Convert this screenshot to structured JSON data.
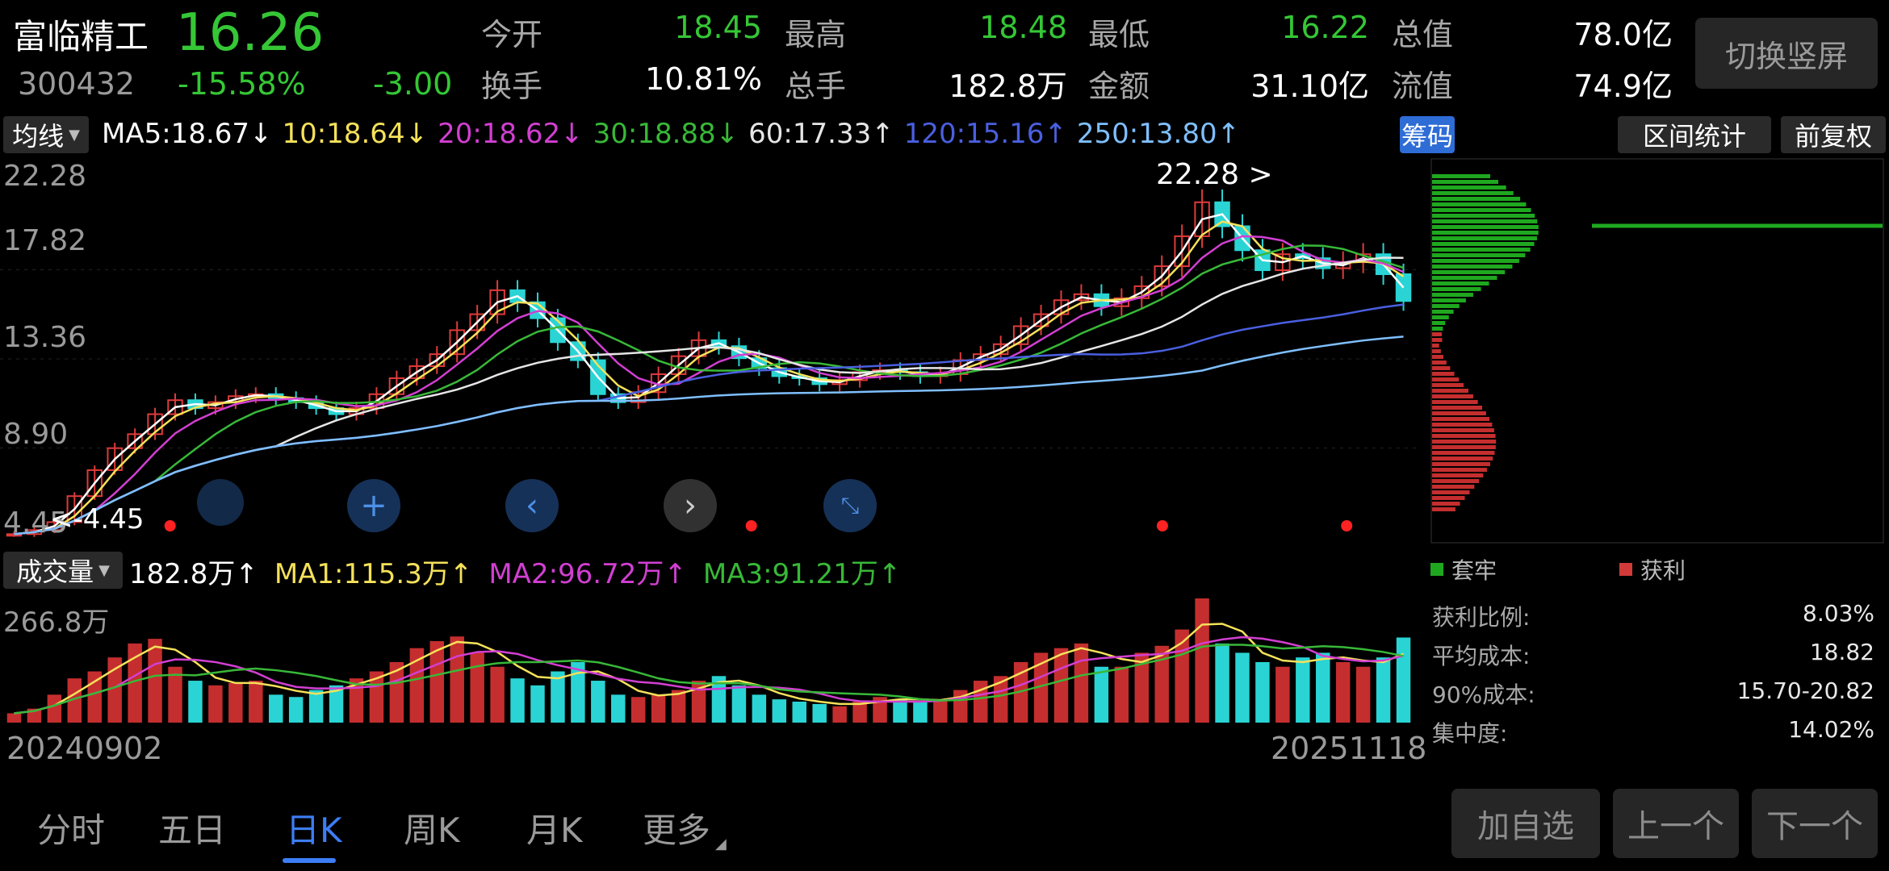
{
  "stock": {
    "name": "富临精工",
    "price": "16.26",
    "code": "300432",
    "change_pct": "-15.58%",
    "change_abs": "-3.00"
  },
  "stats": [
    {
      "label": "今开",
      "value": "18.45",
      "color": "#35c735"
    },
    {
      "label": "最高",
      "value": "18.48",
      "color": "#35c735"
    },
    {
      "label": "最低",
      "value": "16.22",
      "color": "#35c735"
    },
    {
      "label": "总值",
      "value": "78.0亿",
      "color": "#ffffff"
    },
    {
      "label": "换手",
      "value": "10.81%",
      "color": "#ffffff"
    },
    {
      "label": "总手",
      "value": "182.8万",
      "color": "#ffffff"
    },
    {
      "label": "金额",
      "value": "31.10亿",
      "color": "#ffffff"
    },
    {
      "label": "流值",
      "value": "74.9亿",
      "color": "#ffffff"
    }
  ],
  "switch_button": "切换竖屏",
  "ma_row": {
    "selector": "均线",
    "items": [
      {
        "text": "MA5:18.67↓",
        "color": "#ffffff"
      },
      {
        "text": "10:18.64↓",
        "color": "#f5e15a"
      },
      {
        "text": "20:18.62↓",
        "color": "#d23fd2"
      },
      {
        "text": "30:18.88↓",
        "color": "#38b838"
      },
      {
        "text": "60:17.33↑",
        "color": "#e6e6e6"
      },
      {
        "text": "120:15.16↑",
        "color": "#4a5fe0"
      },
      {
        "text": "250:13.80↑",
        "color": "#7fbfff"
      }
    ],
    "chip_button": "筹码",
    "range_button": "区间统计",
    "adjust_button": "前复权"
  },
  "price_axis": [
    "22.28",
    "17.82",
    "13.36",
    "8.90",
    "4.45"
  ],
  "price_ylim": [
    4.45,
    22.28
  ],
  "annotations": {
    "high": "22.28",
    "low": "4.45"
  },
  "volume_row": {
    "selector": "成交量",
    "items": [
      {
        "text": "182.8万↑",
        "color": "#ffffff"
      },
      {
        "text": "MA1:115.3万↑",
        "color": "#f5e15a"
      },
      {
        "text": "MA2:96.72万↑",
        "color": "#d23fd2"
      },
      {
        "text": "MA3:91.21万↑",
        "color": "#38b838"
      }
    ]
  },
  "volume_axis": {
    "max": "266.8万",
    "max_value": 266.8
  },
  "date_range": {
    "start": "20240902",
    "end": "20251118"
  },
  "chips": {
    "legend": [
      {
        "label": "套牢",
        "color": "#1fa81f"
      },
      {
        "label": "获利",
        "color": "#d23a3a"
      }
    ],
    "stats": [
      {
        "label": "获利比例:",
        "value": "8.03%"
      },
      {
        "label": "平均成本:",
        "value": "18.82"
      },
      {
        "label": "90%成本:",
        "value": "15.70-20.82"
      },
      {
        "label": "集中度:",
        "value": "14.02%"
      }
    ]
  },
  "tabs": [
    {
      "label": "分时",
      "active": false
    },
    {
      "label": "五日",
      "active": false
    },
    {
      "label": "日K",
      "active": true
    },
    {
      "label": "周K",
      "active": false
    },
    {
      "label": "月K",
      "active": false
    },
    {
      "label": "更多",
      "active": false
    }
  ],
  "bottom_buttons": [
    "加自选",
    "上一个",
    "下一个"
  ],
  "chart_data": {
    "type": "candlestick",
    "x_start": "20240902",
    "x_end": "20251118",
    "ylim": [
      4.45,
      22.28
    ],
    "close": [
      4.6,
      4.8,
      5.2,
      6.5,
      7.8,
      8.9,
      9.6,
      10.6,
      11.3,
      10.9,
      11.2,
      11.5,
      11.6,
      11.4,
      11.2,
      10.9,
      10.6,
      10.9,
      11.6,
      12.4,
      13.0,
      13.6,
      14.8,
      15.6,
      16.8,
      16.2,
      15.4,
      14.2,
      13.3,
      11.6,
      11.2,
      11.7,
      12.6,
      13.5,
      14.3,
      14.0,
      13.4,
      12.9,
      12.5,
      12.4,
      12.1,
      12.3,
      12.7,
      12.8,
      12.7,
      12.5,
      12.6,
      13.3,
      13.6,
      14.1,
      15.0,
      15.6,
      16.3,
      16.6,
      16.0,
      16.4,
      17.0,
      18.0,
      19.5,
      21.2,
      20.0,
      18.8,
      17.8,
      18.6,
      18.4,
      17.9,
      18.2,
      18.6,
      17.6,
      16.26
    ],
    "volume_wan": [
      20,
      30,
      60,
      95,
      110,
      140,
      170,
      180,
      120,
      90,
      80,
      85,
      90,
      60,
      55,
      70,
      80,
      95,
      110,
      130,
      160,
      175,
      185,
      150,
      120,
      95,
      80,
      110,
      130,
      90,
      60,
      55,
      60,
      70,
      90,
      100,
      80,
      60,
      50,
      45,
      40,
      35,
      45,
      55,
      50,
      45,
      50,
      70,
      90,
      100,
      130,
      150,
      160,
      170,
      120,
      120,
      150,
      165,
      200,
      266.8,
      170,
      150,
      130,
      120,
      140,
      150,
      130,
      120,
      140,
      182.8
    ]
  }
}
